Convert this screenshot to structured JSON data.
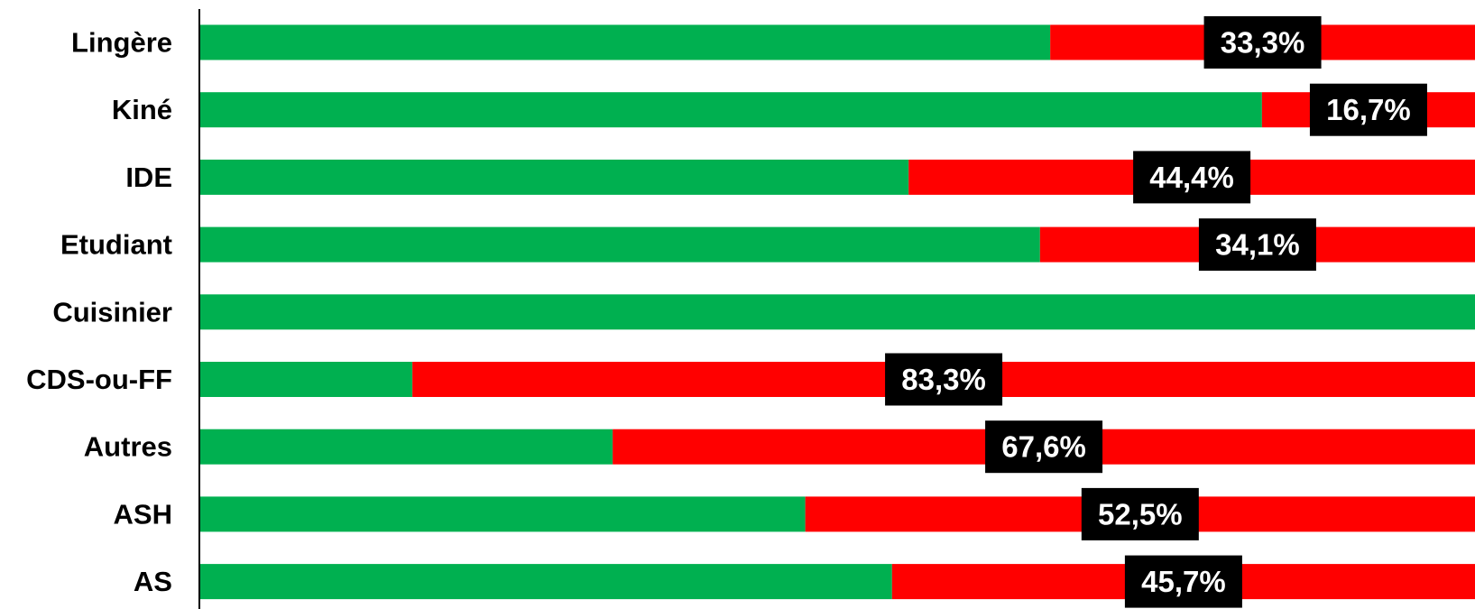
{
  "chart_data": {
    "type": "bar",
    "orientation": "horizontal",
    "stacked": "100%",
    "categories": [
      "Lingère",
      "Kiné",
      "IDE",
      "Etudiant",
      "Cuisinier",
      "CDS-ou-FF",
      "Autres",
      "ASH",
      "AS"
    ],
    "series": [
      {
        "values": [
          66.7,
          83.3,
          55.6,
          65.9,
          100,
          16.7,
          32.4,
          47.5,
          54.3
        ],
        "color": "#00b050"
      },
      {
        "values": [
          33.3,
          16.7,
          44.4,
          34.1,
          0,
          83.3,
          67.6,
          52.5,
          45.7
        ],
        "color": "#ff0000"
      }
    ],
    "data_labels": [
      "33,3%",
      "16,7%",
      "44,4%",
      "34,1%",
      "",
      "83,3%",
      "67,6%",
      "52,5%",
      "45,7%"
    ],
    "xlim": [
      0,
      100
    ],
    "grid": false,
    "legend": "none"
  }
}
